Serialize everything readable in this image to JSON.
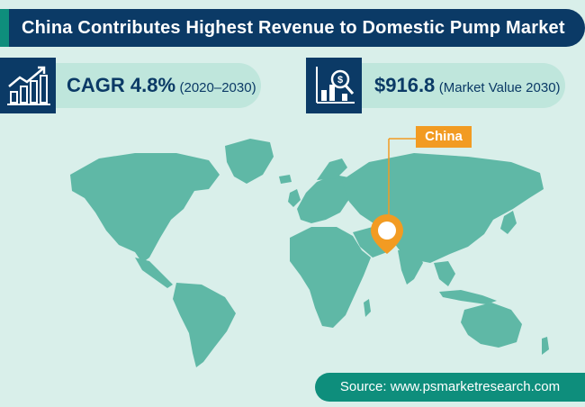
{
  "title": "China Contributes Highest Revenue to Domestic Pump Market",
  "stats": {
    "cagr": {
      "value": "CAGR 4.8%",
      "sub": "(2020–2030)",
      "icon": "growth-chart-icon"
    },
    "market": {
      "value": "$916.8",
      "sub": "(Market Value 2030)",
      "icon": "market-value-icon"
    }
  },
  "map": {
    "callout_label": "China",
    "marker_icon": "location-pin-icon"
  },
  "source": "Source: www.psmarketresearch.com",
  "colors": {
    "navy": "#0b3a66",
    "teal": "#0e8e7c",
    "map_fill": "#5fb8a6",
    "background": "#d9efea",
    "accent_orange": "#f29b22"
  }
}
